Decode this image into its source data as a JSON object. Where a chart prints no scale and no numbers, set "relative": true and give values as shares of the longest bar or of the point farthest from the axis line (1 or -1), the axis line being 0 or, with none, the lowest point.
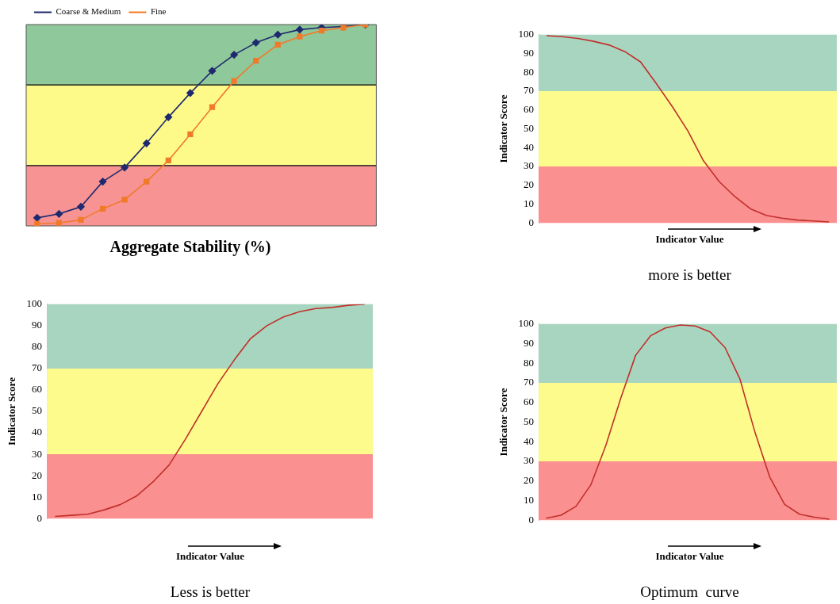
{
  "chart_data": [
    {
      "type": "line",
      "relative": true,
      "xlabel": "Aggregate Stability (%)",
      "categories": [
        null,
        null,
        null,
        null,
        null,
        null,
        null,
        null,
        null,
        null,
        null,
        null,
        null,
        null,
        null,
        null
      ],
      "tick_labels": false,
      "legend": "top left",
      "grid": false,
      "line_style": "solid",
      "series": [
        {
          "name": "Coarse & Medium",
          "color": "#1f2a6e",
          "marker": "diamond",
          "values": [
            0.04,
            0.06,
            0.095,
            0.22,
            0.29,
            0.41,
            0.54,
            0.66,
            0.77,
            0.85,
            0.91,
            0.95,
            0.975,
            0.985,
            0.99,
            1.0
          ]
        },
        {
          "name": "Fine",
          "color": "#f07a2a",
          "marker": "square",
          "values": [
            0.01,
            0.015,
            0.03,
            0.085,
            0.13,
            0.22,
            0.325,
            0.455,
            0.59,
            0.72,
            0.82,
            0.9,
            0.94,
            0.97,
            0.985,
            1.0
          ]
        }
      ],
      "bands": [
        {
          "axis": "y",
          "from": 0,
          "to": 0.3,
          "color": "#f79393"
        },
        {
          "axis": "y",
          "from": 0.3,
          "to": 0.7,
          "color": "#fdfa8a"
        },
        {
          "axis": "y",
          "from": 0.7,
          "to": 1,
          "color": "#8fc89a"
        }
      ],
      "ref_lines": [
        {
          "axis": "y",
          "value": 0.3,
          "color": "#000000"
        },
        {
          "axis": "y",
          "value": 0.7,
          "color": "#000000"
        }
      ]
    },
    {
      "type": "line",
      "ylabel": "Indicator Score",
      "xlabel": "Indicator Value",
      "annotations": [
        "more is better"
      ],
      "categories": [
        null,
        null,
        null,
        null,
        null,
        null,
        null,
        null,
        null,
        null,
        null,
        null,
        null,
        null,
        null,
        null,
        null,
        null,
        null
      ],
      "values": [
        99.5,
        99,
        98,
        96.5,
        94.5,
        91,
        85.5,
        74,
        62,
        49,
        33,
        22,
        14,
        7.5,
        4,
        2.5,
        1.5,
        1,
        0.5
      ],
      "color": "#c0302a",
      "ylim": [
        0,
        100
      ],
      "yticks": [
        0,
        10,
        20,
        30,
        40,
        50,
        60,
        70,
        80,
        90,
        100
      ],
      "tick_labels": "y",
      "grid": false,
      "marker": "none",
      "line_style": "solid",
      "bands": [
        {
          "axis": "y",
          "from": 0,
          "to": 30,
          "color": "#fb9090"
        },
        {
          "axis": "y",
          "from": 30,
          "to": 70,
          "color": "#fdfb8c"
        },
        {
          "axis": "y",
          "from": 70,
          "to": 100,
          "color": "#a8d5c0"
        }
      ]
    },
    {
      "type": "line",
      "ylabel": "Indicator Score",
      "xlabel": "Indicator Value",
      "annotations": [
        "Less is better"
      ],
      "categories": [
        null,
        null,
        null,
        null,
        null,
        null,
        null,
        null,
        null,
        null,
        null,
        null,
        null,
        null,
        null,
        null,
        null,
        null,
        null,
        null
      ],
      "values": [
        1,
        1.5,
        2,
        4,
        6.5,
        10.5,
        17,
        25,
        37,
        50,
        63,
        74,
        84,
        90,
        94,
        96.5,
        98,
        98.5,
        99.5,
        100
      ],
      "color": "#c0302a",
      "ylim": [
        0,
        100
      ],
      "yticks": [
        0,
        10,
        20,
        30,
        40,
        50,
        60,
        70,
        80,
        90,
        100
      ],
      "tick_labels": "y",
      "grid": false,
      "marker": "none",
      "line_style": "solid",
      "bands": [
        {
          "axis": "y",
          "from": 0,
          "to": 30,
          "color": "#fb9090"
        },
        {
          "axis": "y",
          "from": 30,
          "to": 70,
          "color": "#fdfb8c"
        },
        {
          "axis": "y",
          "from": 70,
          "to": 100,
          "color": "#a8d5c0"
        }
      ]
    },
    {
      "type": "line",
      "ylabel": "Indicator Score",
      "xlabel": "Indicator Value",
      "annotations": [
        "Optimum  curve"
      ],
      "categories": [
        null,
        null,
        null,
        null,
        null,
        null,
        null,
        null,
        null,
        null,
        null,
        null,
        null,
        null,
        null,
        null,
        null,
        null,
        null,
        null
      ],
      "values": [
        1,
        2.5,
        7,
        18,
        38,
        62,
        84,
        94,
        98,
        99.5,
        99,
        96,
        88,
        72,
        45,
        22,
        8,
        3,
        1.5,
        0.5
      ],
      "color": "#c0302a",
      "ylim": [
        0,
        100
      ],
      "yticks": [
        0,
        10,
        20,
        30,
        40,
        50,
        60,
        70,
        80,
        90,
        100
      ],
      "tick_labels": "y",
      "grid": false,
      "marker": "none",
      "line_style": "solid",
      "bands": [
        {
          "axis": "y",
          "from": 0,
          "to": 30,
          "color": "#fb9090"
        },
        {
          "axis": "y",
          "from": 30,
          "to": 70,
          "color": "#fdfb8c"
        },
        {
          "axis": "y",
          "from": 70,
          "to": 100,
          "color": "#a8d5c0"
        }
      ]
    }
  ]
}
